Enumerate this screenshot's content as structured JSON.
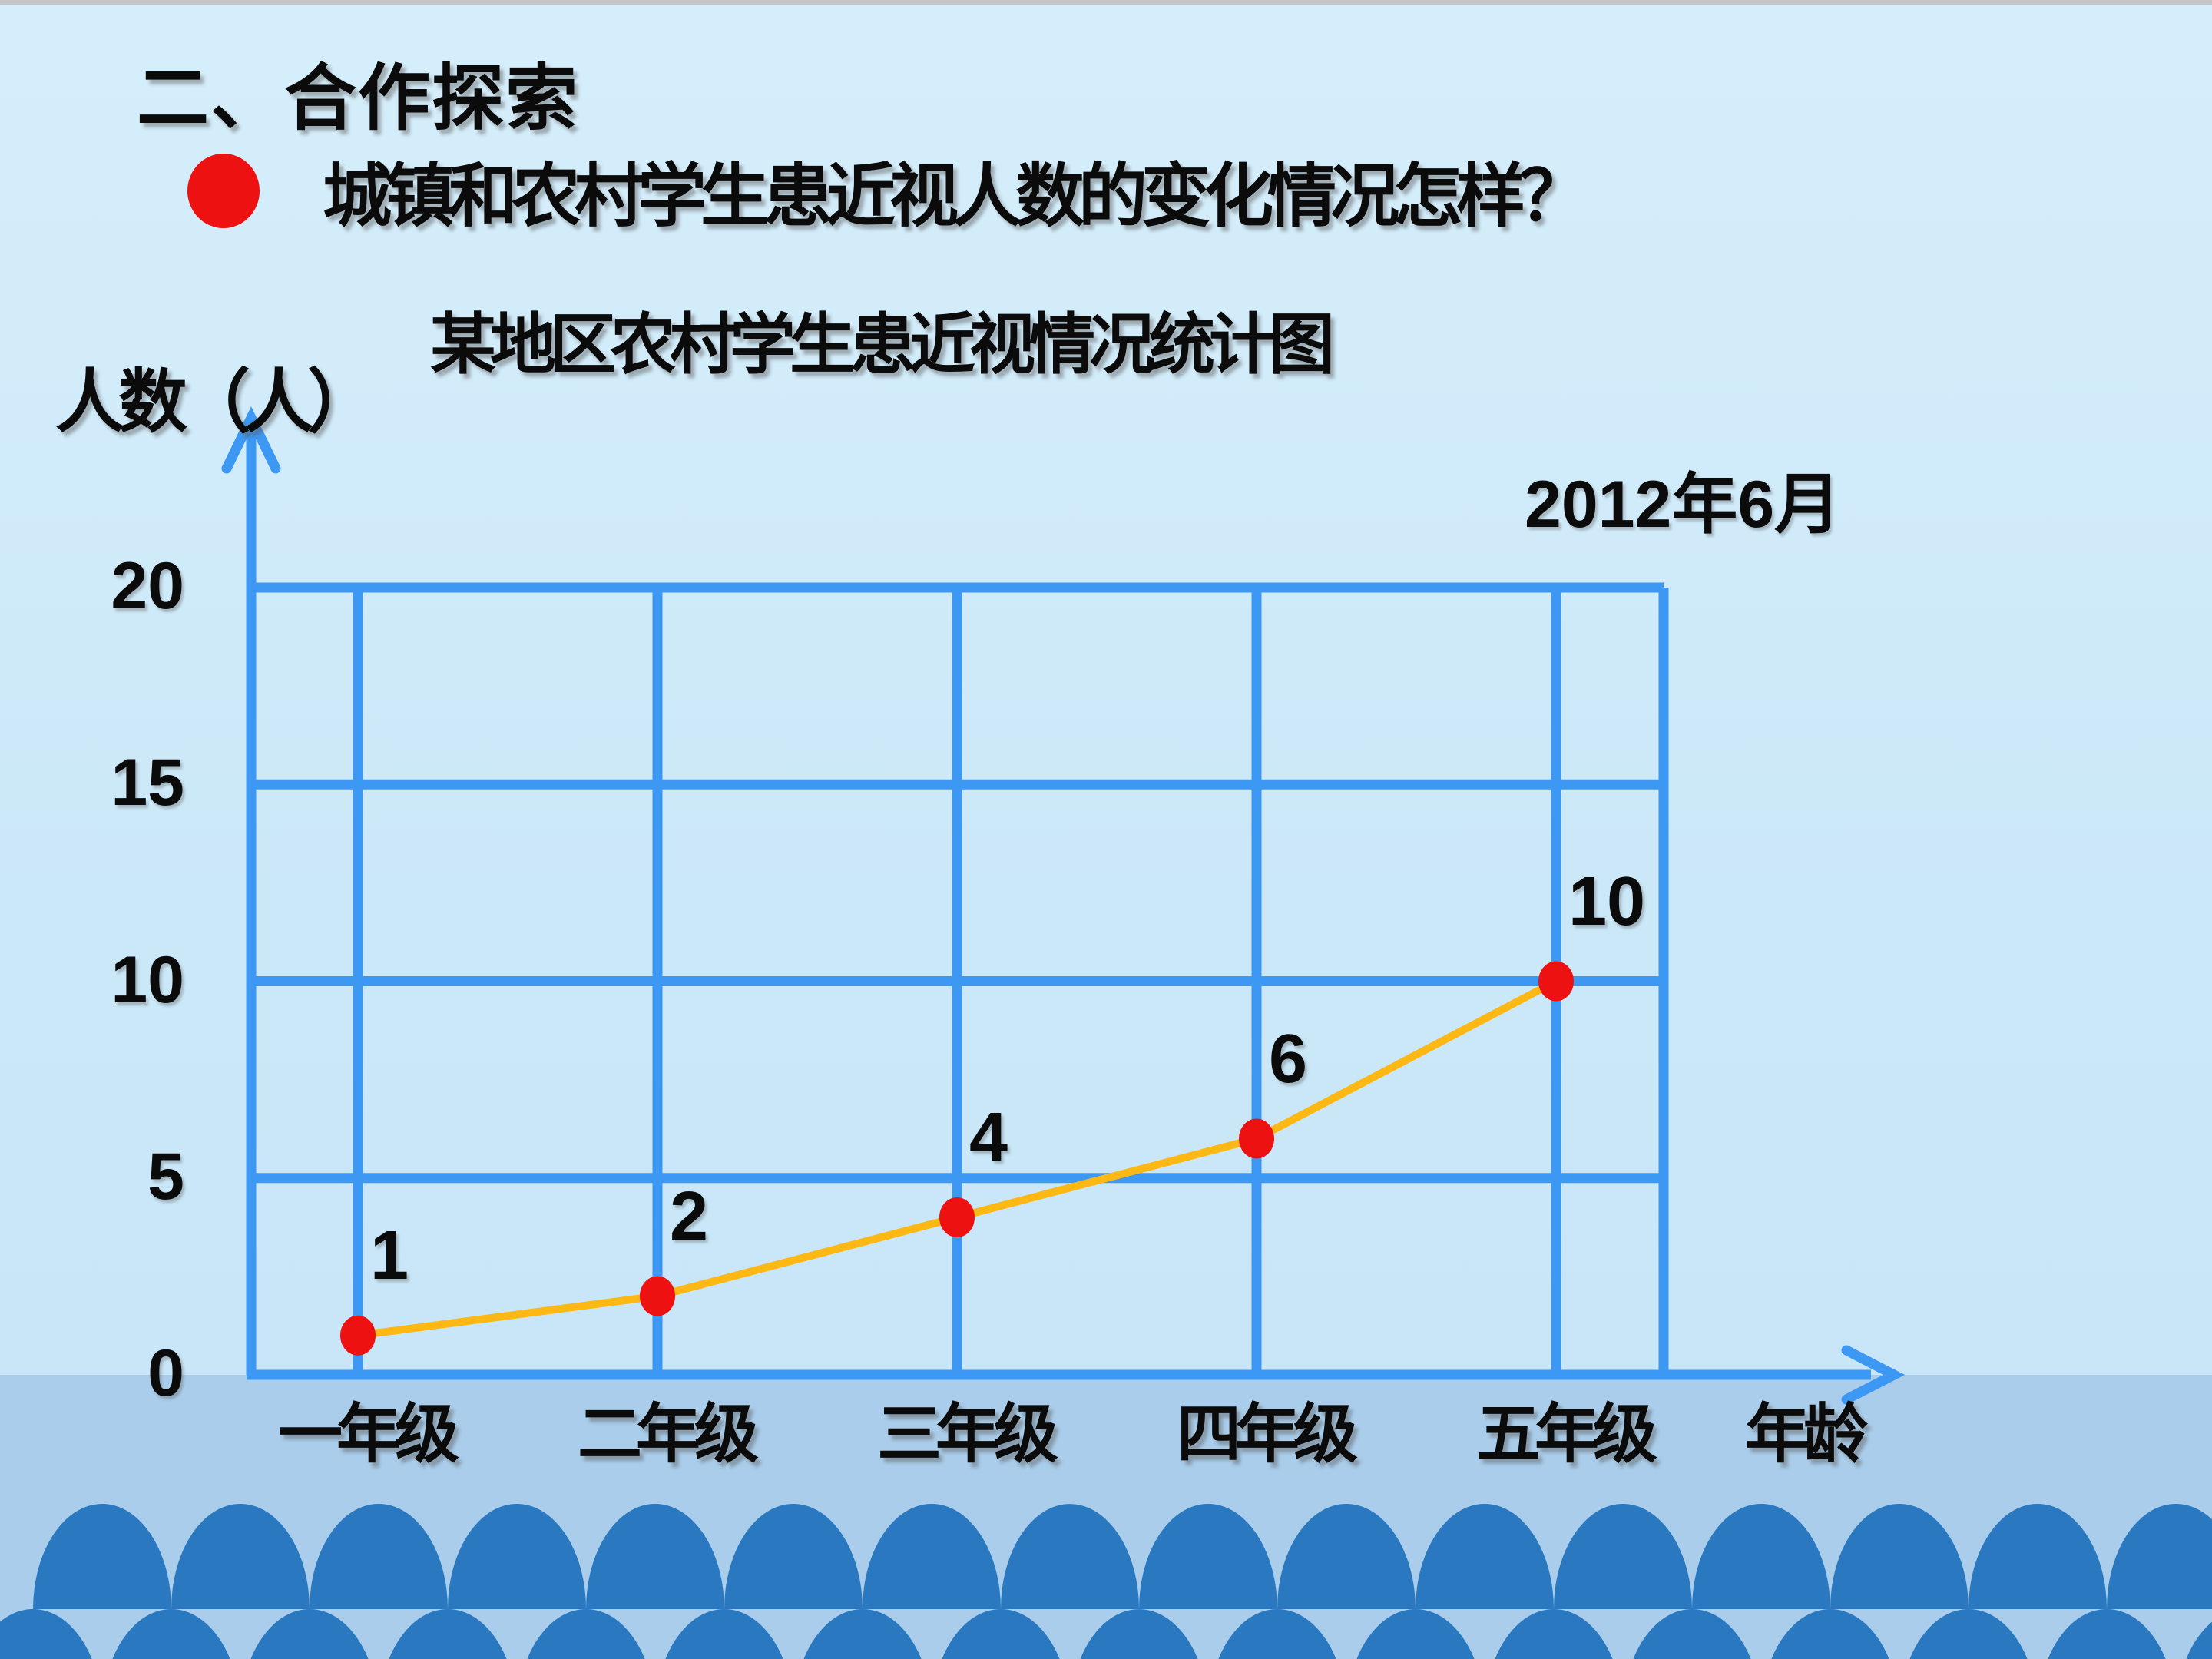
{
  "window": {
    "top_edge_color": "#c6c6c6"
  },
  "slide": {
    "section_heading": "二、合作探索",
    "question": "城镇和农村学生患近视人数的变化情况怎样？",
    "bullet_color": "#ee1111"
  },
  "chart_data": {
    "type": "line",
    "title": "某地区农村学生患近视情况统计图",
    "date_annotation": "2012年6月",
    "y_axis_title": "人数（人）",
    "x_axis_title": "年龄",
    "categories": [
      "一年级",
      "二年级",
      "三年级",
      "四年级",
      "五年级"
    ],
    "values": [
      1,
      2,
      4,
      6,
      10
    ],
    "point_labels": [
      "1",
      "2",
      "4",
      "6",
      "10"
    ],
    "y_ticks": [
      0,
      5,
      10,
      15,
      20
    ],
    "ylim": [
      0,
      20
    ],
    "grid": true,
    "legend_position": "none",
    "axis_color": "#3d98f4",
    "line_color": "#fdb813",
    "point_color": "#ee1111",
    "tick_label_color": "#0b0b0b"
  },
  "decor": {
    "band_color": "#a9cdea",
    "wave_color": "#2a79c0"
  }
}
